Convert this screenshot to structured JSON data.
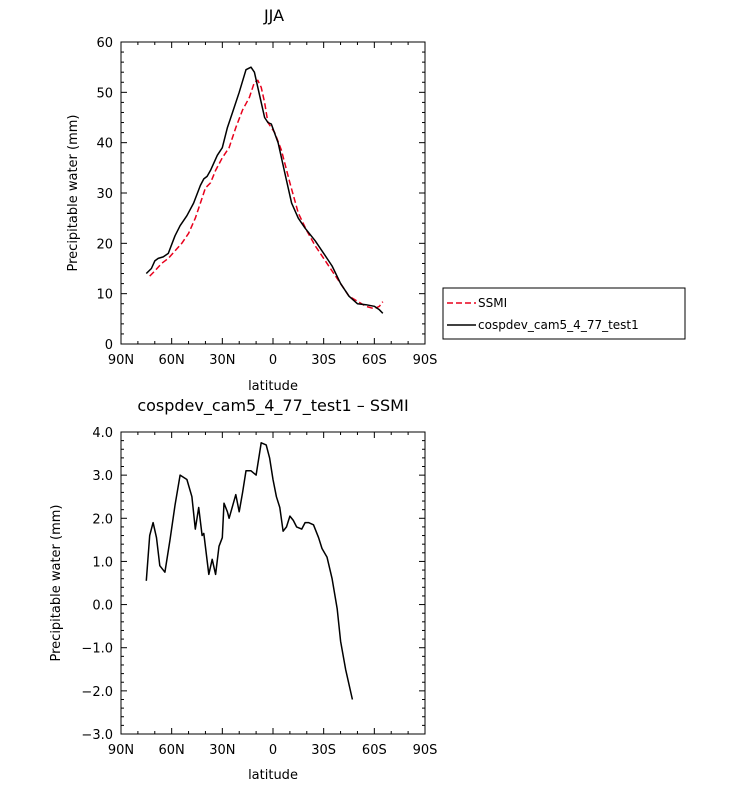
{
  "chart_data": [
    {
      "type": "line",
      "title": "JJA",
      "xlabel": "latitude",
      "ylabel": "Precipitable water (mm)",
      "xlim": [
        90,
        -90
      ],
      "ylim": [
        0,
        60
      ],
      "x_ticks": [
        90,
        60,
        30,
        0,
        -30,
        -60,
        -90
      ],
      "x_tick_labels": [
        "90N",
        "60N",
        "30N",
        "0",
        "30S",
        "60S",
        "90S"
      ],
      "y_ticks": [
        0,
        10,
        20,
        30,
        40,
        50,
        60
      ],
      "y_tick_labels": [
        "0",
        "10",
        "20",
        "30",
        "40",
        "50",
        "60"
      ],
      "grid": false,
      "legend_position": "right",
      "series": [
        {
          "name": "SSMI",
          "color": "#e8001c",
          "style": "dashed",
          "x": [
            73,
            70,
            66,
            62,
            58,
            54,
            50,
            46,
            42,
            40,
            37,
            34,
            30,
            26,
            22,
            18,
            14,
            11,
            9,
            7,
            5,
            3,
            1,
            -1,
            -5,
            -10,
            -15,
            -20,
            -25,
            -30,
            -35,
            -40,
            -45,
            -50,
            -55,
            -60,
            -63,
            -65
          ],
          "y": [
            13.5,
            14.5,
            16.0,
            17.0,
            18.5,
            20.0,
            22.0,
            25.0,
            29.0,
            31.0,
            32.0,
            34.5,
            37.0,
            39.0,
            43.0,
            46.5,
            49.0,
            52.0,
            52.4,
            51.0,
            48.0,
            44.0,
            43.0,
            42.0,
            38.5,
            32.0,
            26.0,
            22.5,
            19.5,
            17.0,
            14.5,
            12.0,
            9.5,
            8.5,
            7.5,
            7.0,
            7.5,
            8.4
          ]
        },
        {
          "name": "cospdev_cam5_4_77_test1",
          "color": "#000000",
          "style": "solid",
          "x": [
            75,
            72,
            70,
            68,
            65,
            62,
            58,
            55,
            51,
            47,
            43,
            41,
            39,
            37,
            33,
            30,
            27,
            24,
            20,
            16,
            13,
            11,
            9,
            7,
            5,
            3,
            1,
            -3,
            -7,
            -11,
            -15,
            -19,
            -25,
            -30,
            -35,
            -40,
            -45,
            -50,
            -55,
            -60,
            -63,
            -65
          ],
          "y": [
            14.0,
            15.0,
            16.5,
            17.0,
            17.3,
            18.0,
            21.5,
            23.5,
            25.5,
            28.0,
            31.5,
            32.8,
            33.3,
            34.5,
            37.5,
            39.0,
            43.0,
            46.0,
            50.0,
            54.5,
            55.0,
            54.0,
            51.0,
            48.0,
            45.0,
            44.0,
            43.7,
            40.0,
            34.0,
            28.0,
            25.0,
            23.0,
            20.5,
            18.0,
            15.5,
            12.0,
            9.5,
            8.0,
            7.8,
            7.5,
            6.8,
            6.1
          ]
        }
      ]
    },
    {
      "type": "line",
      "title": "cospdev_cam5_4_77_test1 – SSMI",
      "xlabel": "latitude",
      "ylabel": "Precipitable water (mm)",
      "xlim": [
        90,
        -90
      ],
      "ylim": [
        -3.0,
        4.0
      ],
      "x_ticks": [
        90,
        60,
        30,
        0,
        -30,
        -60,
        -90
      ],
      "x_tick_labels": [
        "90N",
        "60N",
        "30N",
        "0",
        "30S",
        "60S",
        "90S"
      ],
      "y_ticks": [
        -3,
        -2,
        -1,
        0,
        1,
        2,
        3,
        4
      ],
      "y_tick_labels": [
        "−3.0",
        "−2.0",
        "−1.0",
        "0.0",
        "1.0",
        "2.0",
        "3.0",
        "4.0"
      ],
      "grid": false,
      "series": [
        {
          "color": "#000000",
          "style": "solid",
          "x": [
            75,
            73,
            71,
            69,
            67,
            64,
            61,
            58,
            55,
            51,
            48,
            46,
            44,
            42,
            41,
            38,
            36,
            34,
            32,
            30,
            29,
            27,
            26,
            22,
            20,
            18,
            16,
            13,
            10,
            8,
            7,
            4,
            2,
            0,
            -2,
            -4,
            -6,
            -8,
            -10,
            -12,
            -14,
            -17,
            -19,
            -21,
            -24,
            -27,
            -29,
            -32,
            -35,
            -38,
            -40,
            -43,
            -47,
            -51,
            -55,
            -59,
            -61,
            -63,
            -65
          ],
          "y": [
            0.55,
            1.6,
            1.9,
            1.55,
            0.9,
            0.75,
            1.5,
            2.3,
            3.0,
            2.9,
            2.5,
            1.75,
            2.25,
            1.6,
            1.65,
            0.7,
            1.05,
            0.7,
            1.35,
            1.55,
            2.35,
            2.15,
            2.0,
            2.55,
            2.15,
            2.6,
            3.1,
            3.1,
            3.0,
            3.5,
            3.75,
            3.7,
            3.4,
            2.9,
            2.5,
            2.25,
            1.7,
            1.8,
            2.05,
            1.95,
            1.8,
            1.75,
            1.9,
            1.9,
            1.85,
            1.55,
            1.3,
            1.1,
            0.6,
            -0.1,
            -0.85,
            -1.5,
            -2.2,
            null,
            null,
            null,
            null,
            null,
            null
          ]
        }
      ]
    }
  ]
}
